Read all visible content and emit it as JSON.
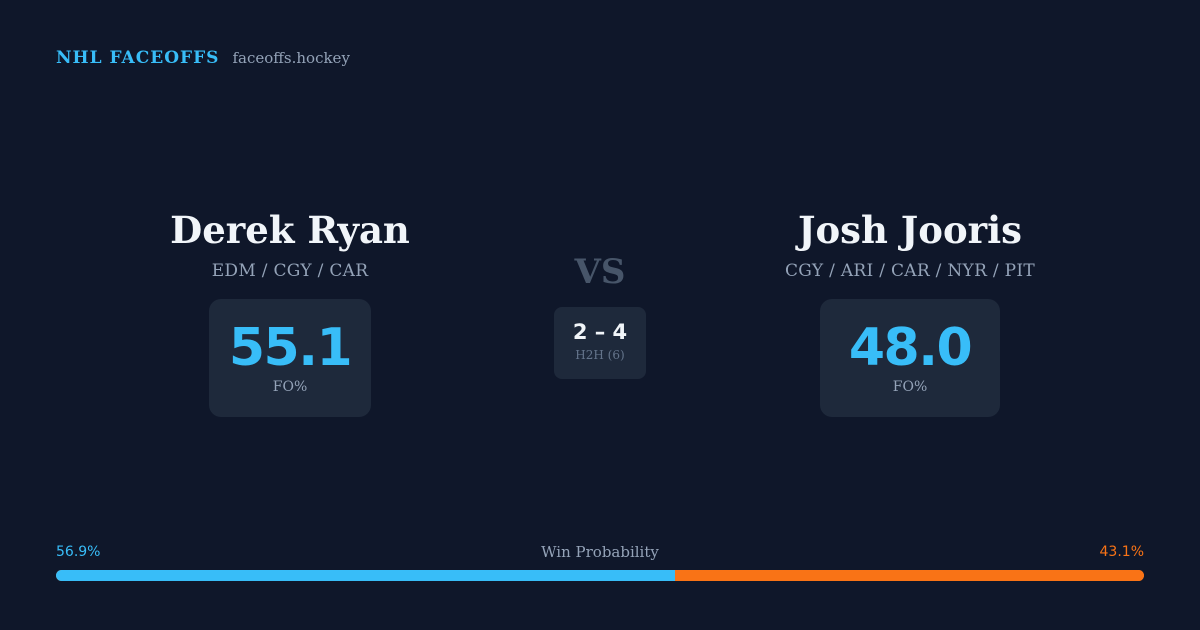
{
  "brand": {
    "title": "NHL FACEOFFS",
    "site": "faceoffs.hockey"
  },
  "player_left": {
    "name": "Derek Ryan",
    "teams": "EDM / CGY / CAR",
    "fo_value": "55.1",
    "fo_label": "FO%"
  },
  "player_right": {
    "name": "Josh Jooris",
    "teams": "CGY / ARI / CAR / NYR / PIT",
    "fo_value": "48.0",
    "fo_label": "FO%"
  },
  "matchup": {
    "vs": "VS",
    "h2h_score": "2 – 4",
    "h2h_label": "H2H (6)"
  },
  "win_probability": {
    "title": "Win Probability",
    "left_label": "56.9%",
    "right_label": "43.1%",
    "left_fraction": 0.569,
    "left_color": "#38bdf8",
    "right_color": "#f97316"
  }
}
